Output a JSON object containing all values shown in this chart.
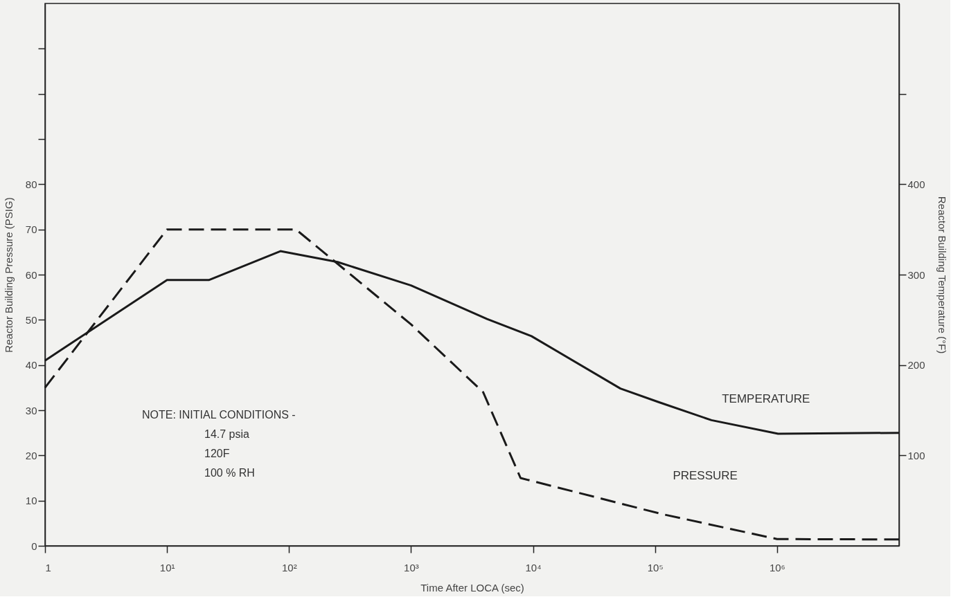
{
  "chart_data": {
    "type": "line",
    "xlabel": "Time After LOCA (sec)",
    "ylabel": "Reactor Building Pressure (PSIG)",
    "y2label": "Reactor Building Temperature (°F)",
    "log": "x",
    "xlim": [
      1,
      10000000
    ],
    "xticks": [
      1,
      {
        "value": 10,
        "label": "10¹"
      },
      {
        "value": 100,
        "label": "10²"
      },
      {
        "value": 1000,
        "label": "10³"
      },
      {
        "value": 10000,
        "label": "10⁴"
      },
      {
        "value": 100000,
        "label": "10⁵"
      },
      {
        "value": 1000000,
        "label": "10⁶"
      }
    ],
    "ylim": [
      0,
      120
    ],
    "yticks": [
      0,
      10,
      20,
      30,
      40,
      50,
      60,
      70,
      80,
      {
        "value": 90,
        "label": null
      },
      {
        "value": 100,
        "label": null
      },
      {
        "value": 110,
        "label": null
      }
    ],
    "y2lim": [
      0,
      600
    ],
    "y2ticks": [
      100,
      200,
      300,
      400,
      {
        "value": 500,
        "label": null
      }
    ],
    "grid": false,
    "annotations": [
      "NOTE:  INITIAL CONDITIONS -",
      "14.7 psia",
      "120F",
      "100 % RH"
    ],
    "series": [
      {
        "name": "TEMPERATURE",
        "axis": "y2",
        "color": "#1a1a1a",
        "line_style": "solid",
        "x": [
          1,
          10,
          22,
          85,
          250,
          1000,
          4200,
          9700,
          52000,
          107000,
          290000,
          1020000,
          10000000
        ],
        "values": [
          205,
          294,
          294,
          326,
          314,
          288,
          251,
          232,
          174,
          159,
          139,
          124,
          125
        ]
      },
      {
        "name": "PRESSURE",
        "axis": "y",
        "color": "#1a1a1a",
        "line_style": "dashed",
        "x": [
          1,
          10,
          114,
          1000,
          3900,
          7900,
          115000,
          1000000,
          10000000
        ],
        "values": [
          35,
          70,
          70,
          49,
          34,
          15,
          7,
          1.5,
          1.4
        ]
      }
    ]
  }
}
